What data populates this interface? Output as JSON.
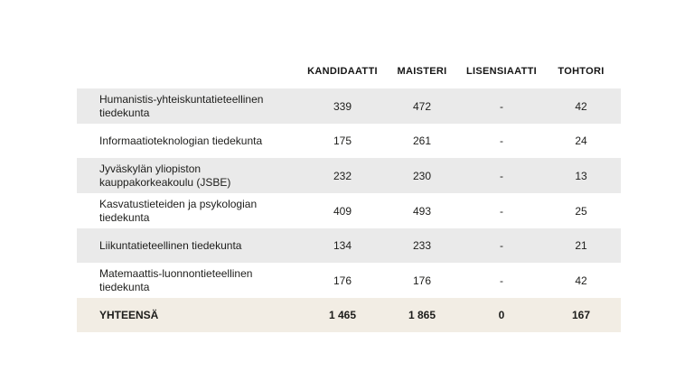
{
  "chart_data": {
    "type": "table",
    "columns": [
      "KANDIDAATTI",
      "MAISTERI",
      "LISENSIAATTI",
      "TOHTORI"
    ],
    "rows": [
      {
        "label": "Humanistis-yhteiskuntatieteellinen tiedekunta",
        "values": [
          "339",
          "472",
          "-",
          "42"
        ]
      },
      {
        "label": "Informaatioteknologian tiedekunta",
        "values": [
          "175",
          "261",
          "-",
          "24"
        ]
      },
      {
        "label": "Jyväskylän yliopiston kauppakorkeakoulu (JSBE)",
        "values": [
          "232",
          "230",
          "-",
          "13"
        ]
      },
      {
        "label": "Kasvatustieteiden ja psykologian tiedekunta",
        "values": [
          "409",
          "493",
          "-",
          "25"
        ]
      },
      {
        "label": "Liikuntatieteellinen tiedekunta",
        "values": [
          "134",
          "233",
          "-",
          "21"
        ]
      },
      {
        "label": "Matemaattis-luonnontieteellinen tiedekunta",
        "values": [
          "176",
          "176",
          "-",
          "42"
        ]
      }
    ],
    "total": {
      "label": "YHTEENSÄ",
      "values": [
        "1 465",
        "1 865",
        "0",
        "167"
      ]
    },
    "layout": {
      "shaded_row_indices": [
        0,
        2,
        4
      ],
      "grid": "off",
      "legend": "none"
    }
  },
  "colors": {
    "row_shaded_bg": "#eaeaea",
    "row_plain_bg": "#ffffff",
    "total_row_bg": "#f2ede4",
    "text": "#1d1d1b"
  }
}
